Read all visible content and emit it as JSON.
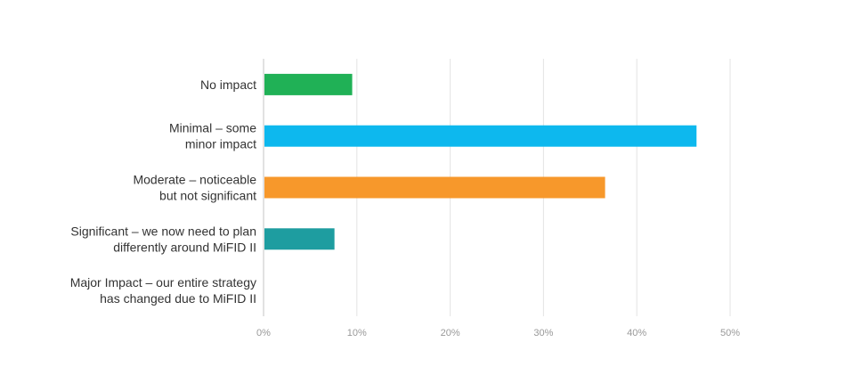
{
  "chart_data": {
    "type": "bar",
    "orientation": "horizontal",
    "categories": [
      [
        "No impact"
      ],
      [
        "Minimal – some",
        "minor impact"
      ],
      [
        "Moderate – noticeable",
        "but not significant"
      ],
      [
        "Significant – we now need to plan",
        "differently around MiFID II"
      ],
      [
        "Major Impact – our entire strategy",
        "has changed due to MiFID II"
      ]
    ],
    "values": [
      9.5,
      46.4,
      36.6,
      7.6,
      0
    ],
    "colors": [
      "#20b156",
      "#0db8ee",
      "#f7982b",
      "#1e9da0",
      "#999999"
    ],
    "xlim": [
      0,
      50
    ],
    "xticks": [
      0,
      10,
      20,
      30,
      40,
      50
    ],
    "xtick_labels": [
      "0%",
      "10%",
      "20%",
      "30%",
      "40%",
      "50%"
    ],
    "grid": true,
    "title": "",
    "xlabel": "",
    "ylabel": ""
  }
}
